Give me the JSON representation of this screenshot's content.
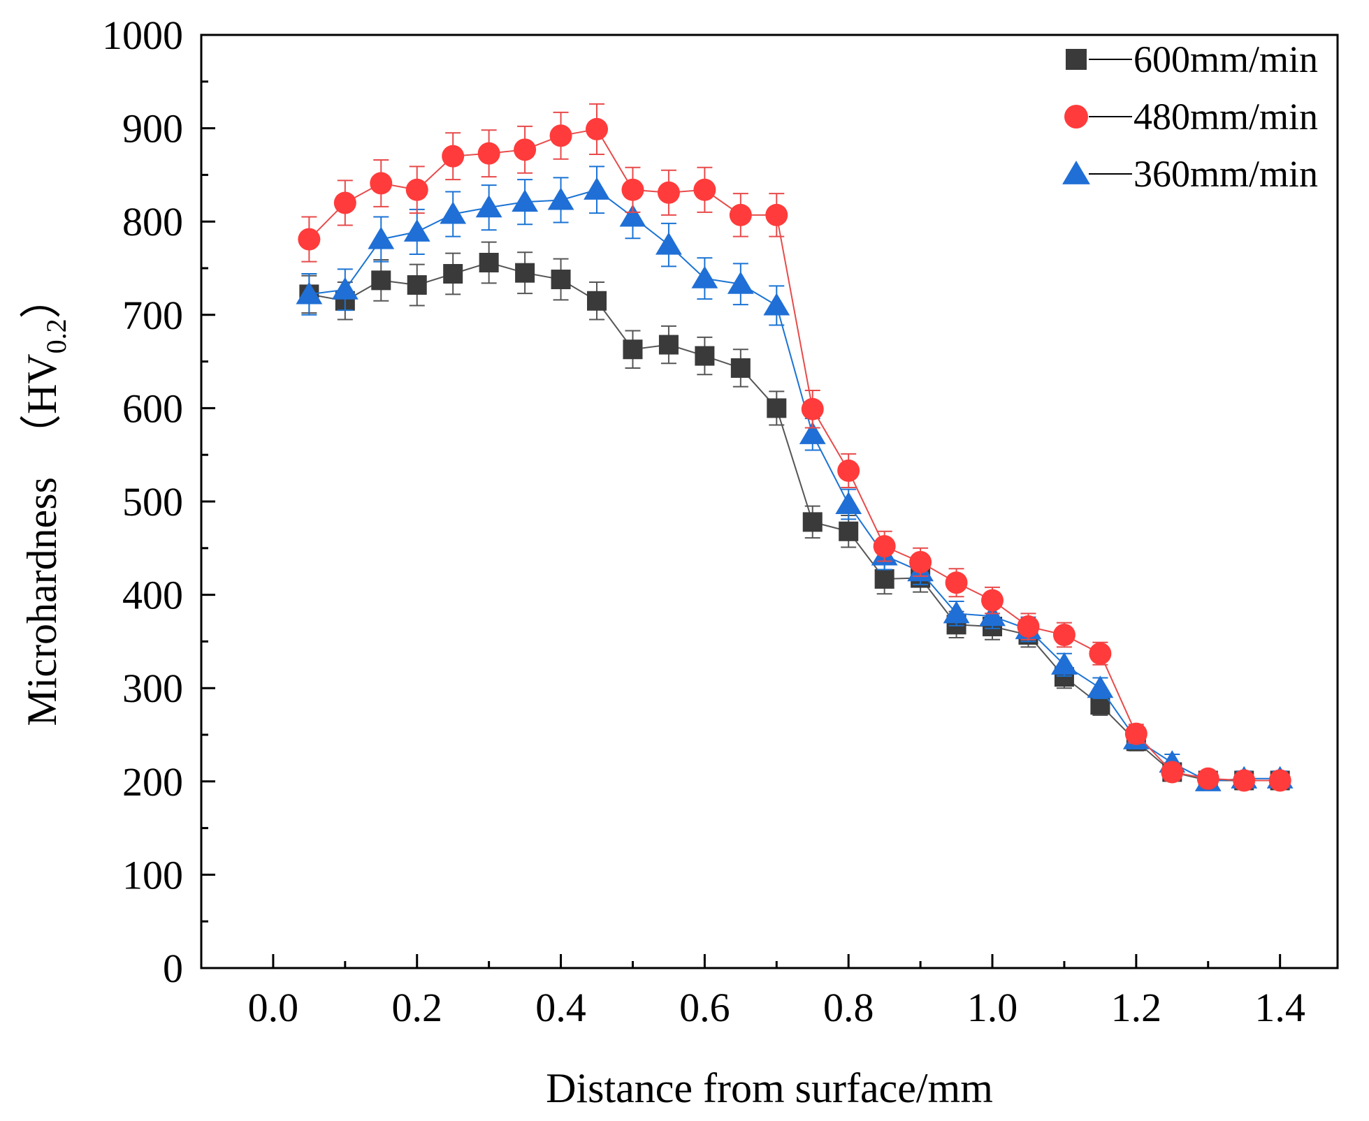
{
  "chart_data": {
    "type": "line",
    "title": "",
    "xlabel": "Distance from surface/mm",
    "ylabel": {
      "main": "Microhardness　（HV",
      "sub": "0.2",
      "close": "）"
    },
    "xlim": [
      -0.1,
      1.48
    ],
    "ylim": [
      0,
      1000
    ],
    "xticks": [
      "0.0",
      "0.2",
      "0.4",
      "0.6",
      "0.8",
      "1.0",
      "1.2",
      "1.4"
    ],
    "yticks": [
      "0",
      "100",
      "200",
      "300",
      "400",
      "500",
      "600",
      "700",
      "800",
      "900",
      "1000"
    ],
    "grid": false,
    "legend_position": "top-right",
    "x": [
      0.05,
      0.1,
      0.15,
      0.2,
      0.25,
      0.3,
      0.35,
      0.4,
      0.45,
      0.5,
      0.55,
      0.6,
      0.65,
      0.7,
      0.75,
      0.8,
      0.85,
      0.9,
      0.95,
      1.0,
      1.05,
      1.1,
      1.15,
      1.2,
      1.25,
      1.3,
      1.35,
      1.4
    ],
    "series": [
      {
        "name": "600mm/min",
        "marker": "square",
        "color": "#3a3a3a",
        "line_color": "#555555",
        "values": [
          722,
          715,
          737,
          732,
          744,
          756,
          745,
          738,
          715,
          663,
          668,
          656,
          643,
          600,
          478,
          468,
          417,
          418,
          368,
          366,
          357,
          312,
          282,
          243,
          210,
          201,
          201,
          201
        ],
        "errors": [
          20,
          20,
          22,
          22,
          22,
          22,
          22,
          22,
          20,
          20,
          20,
          20,
          20,
          18,
          17,
          17,
          16,
          15,
          14,
          14,
          13,
          12,
          11,
          10,
          9,
          8,
          8,
          8
        ]
      },
      {
        "name": "480mm/min",
        "marker": "circle",
        "color": "#ff3b3b",
        "line_color": "#e84a4a",
        "values": [
          781,
          820,
          841,
          834,
          870,
          873,
          877,
          892,
          899,
          834,
          831,
          834,
          807,
          807,
          599,
          533,
          452,
          435,
          413,
          394,
          366,
          357,
          337,
          251,
          210,
          203,
          201,
          201
        ],
        "errors": [
          24,
          24,
          25,
          25,
          25,
          25,
          25,
          25,
          27,
          24,
          24,
          24,
          23,
          23,
          20,
          18,
          16,
          15,
          15,
          14,
          14,
          13,
          12,
          10,
          9,
          8,
          8,
          8
        ]
      },
      {
        "name": "360mm/min",
        "marker": "triangle",
        "color": "#1f6fd6",
        "line_color": "#1a73d4",
        "values": [
          722,
          727,
          781,
          789,
          808,
          815,
          821,
          823,
          834,
          805,
          775,
          739,
          733,
          710,
          572,
          497,
          442,
          425,
          380,
          377,
          363,
          325,
          300,
          245,
          220,
          200,
          203,
          203
        ],
        "errors": [
          22,
          22,
          24,
          24,
          24,
          24,
          24,
          24,
          25,
          23,
          23,
          22,
          22,
          21,
          17,
          16,
          15,
          14,
          13,
          13,
          13,
          12,
          11,
          10,
          9,
          8,
          8,
          8
        ]
      }
    ]
  }
}
